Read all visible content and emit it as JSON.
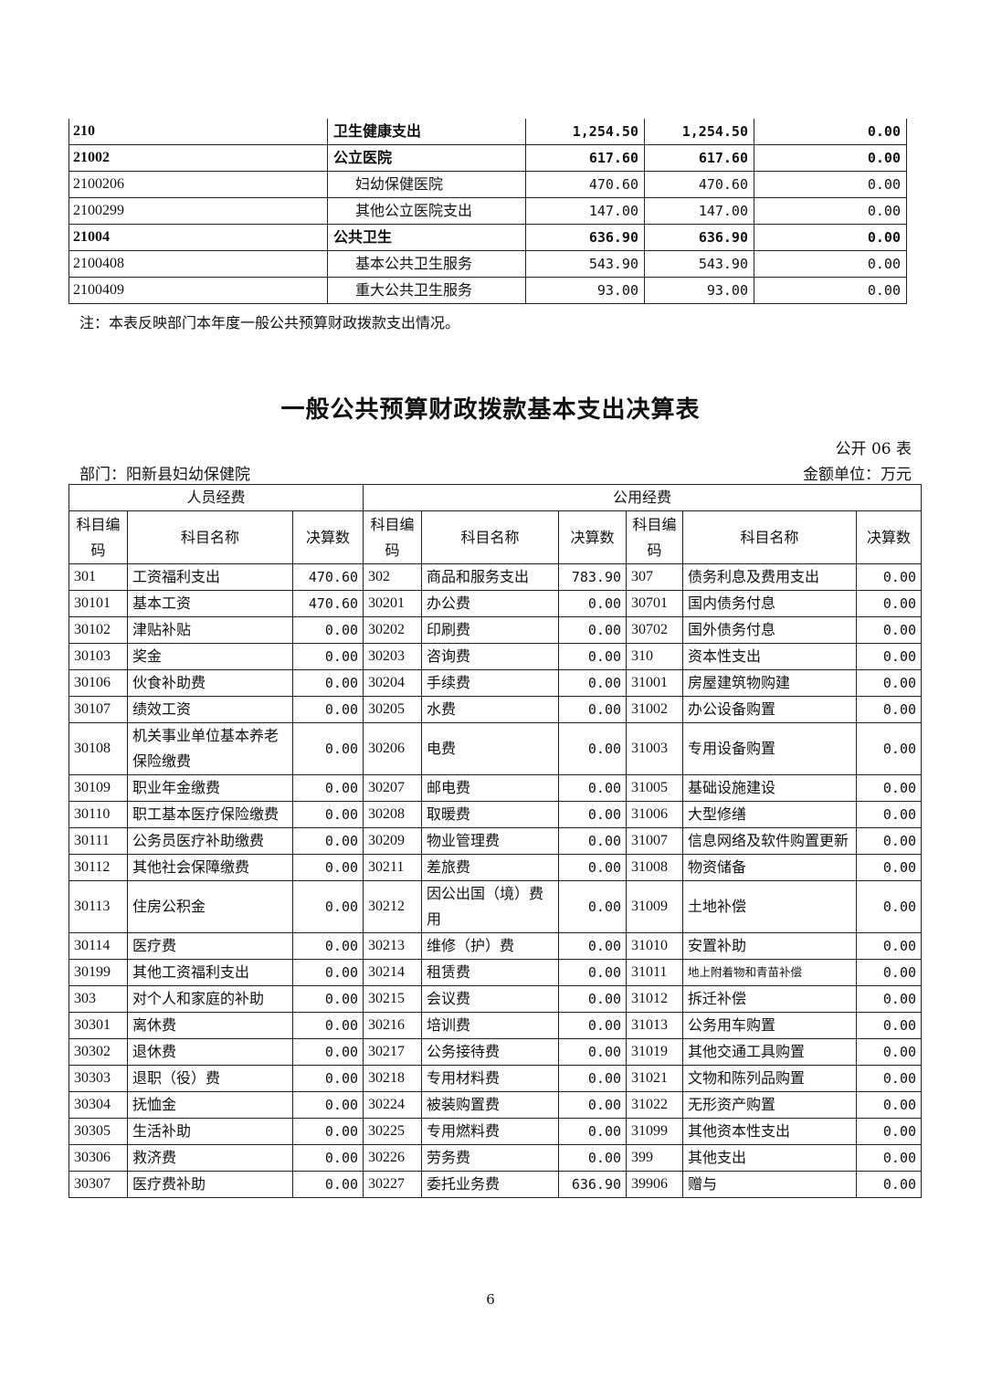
{
  "table1": {
    "rows": [
      {
        "code": "210",
        "name": "卫生健康支出",
        "c1": "1,254.50",
        "c2": "1,254.50",
        "c3": "0.00",
        "bold": true
      },
      {
        "code": "21002",
        "name": "公立医院",
        "c1": "617.60",
        "c2": "617.60",
        "c3": "0.00",
        "bold": true
      },
      {
        "code": "2100206",
        "name": "妇幼保健医院",
        "c1": "470.60",
        "c2": "470.60",
        "c3": "0.00",
        "bold": false
      },
      {
        "code": "2100299",
        "name": "其他公立医院支出",
        "c1": "147.00",
        "c2": "147.00",
        "c3": "0.00",
        "bold": false
      },
      {
        "code": "21004",
        "name": "公共卫生",
        "c1": "636.90",
        "c2": "636.90",
        "c3": "0.00",
        "bold": true
      },
      {
        "code": "2100408",
        "name": "基本公共卫生服务",
        "c1": "543.90",
        "c2": "543.90",
        "c3": "0.00",
        "bold": false
      },
      {
        "code": "2100409",
        "name": "重大公共卫生服务",
        "c1": "93.00",
        "c2": "93.00",
        "c3": "0.00",
        "bold": false
      }
    ],
    "note": "注：本表反映部门本年度一般公共预算财政拨款支出情况。"
  },
  "table2": {
    "title": "一般公共预算财政拨款基本支出决算表",
    "table_no": "公开 06 表",
    "department": "部门：阳新县妇幼保健院",
    "unit": "金额单位：万元",
    "group_personnel": "人员经费",
    "group_public": "公用经费",
    "h_code": "科目编码",
    "h_name": "科目名称",
    "h_amount": "决算数",
    "rows": [
      [
        [
          "301",
          "工资福利支出",
          "470.60"
        ],
        [
          "302",
          "商品和服务支出",
          "783.90"
        ],
        [
          "307",
          "债务利息及费用支出",
          "0.00"
        ]
      ],
      [
        [
          "30101",
          "基本工资",
          "470.60"
        ],
        [
          "30201",
          "办公费",
          "0.00"
        ],
        [
          "30701",
          "国内债务付息",
          "0.00"
        ]
      ],
      [
        [
          "30102",
          "津贴补贴",
          "0.00"
        ],
        [
          "30202",
          "印刷费",
          "0.00"
        ],
        [
          "30702",
          "国外债务付息",
          "0.00"
        ]
      ],
      [
        [
          "30103",
          "奖金",
          "0.00"
        ],
        [
          "30203",
          "咨询费",
          "0.00"
        ],
        [
          "310",
          "资本性支出",
          "0.00"
        ]
      ],
      [
        [
          "30106",
          "伙食补助费",
          "0.00"
        ],
        [
          "30204",
          "手续费",
          "0.00"
        ],
        [
          "31001",
          "房屋建筑物购建",
          "0.00"
        ]
      ],
      [
        [
          "30107",
          "绩效工资",
          "0.00"
        ],
        [
          "30205",
          "水费",
          "0.00"
        ],
        [
          "31002",
          "办公设备购置",
          "0.00"
        ]
      ],
      [
        [
          "30108",
          "机关事业单位基本养老保险缴费",
          "0.00"
        ],
        [
          "30206",
          "电费",
          "0.00"
        ],
        [
          "31003",
          "专用设备购置",
          "0.00"
        ]
      ],
      [
        [
          "30109",
          "职业年金缴费",
          "0.00"
        ],
        [
          "30207",
          "邮电费",
          "0.00"
        ],
        [
          "31005",
          "基础设施建设",
          "0.00"
        ]
      ],
      [
        [
          "30110",
          "职工基本医疗保险缴费",
          "0.00"
        ],
        [
          "30208",
          "取暖费",
          "0.00"
        ],
        [
          "31006",
          "大型修缮",
          "0.00"
        ]
      ],
      [
        [
          "30111",
          "公务员医疗补助缴费",
          "0.00"
        ],
        [
          "30209",
          "物业管理费",
          "0.00"
        ],
        [
          "31007",
          "信息网络及软件购置更新",
          "0.00"
        ]
      ],
      [
        [
          "30112",
          "其他社会保障缴费",
          "0.00"
        ],
        [
          "30211",
          "差旅费",
          "0.00"
        ],
        [
          "31008",
          "物资储备",
          "0.00"
        ]
      ],
      [
        [
          "30113",
          "住房公积金",
          "0.00"
        ],
        [
          "30212",
          "因公出国（境）费用",
          "0.00"
        ],
        [
          "31009",
          "土地补偿",
          "0.00"
        ]
      ],
      [
        [
          "30114",
          "医疗费",
          "0.00"
        ],
        [
          "30213",
          "维修（护）费",
          "0.00"
        ],
        [
          "31010",
          "安置补助",
          "0.00"
        ]
      ],
      [
        [
          "30199",
          "其他工资福利支出",
          "0.00"
        ],
        [
          "30214",
          "租赁费",
          "0.00"
        ],
        [
          "31011",
          "地上附着物和青苗补偿",
          "0.00"
        ]
      ],
      [
        [
          "303",
          "对个人和家庭的补助",
          "0.00"
        ],
        [
          "30215",
          "会议费",
          "0.00"
        ],
        [
          "31012",
          "拆迁补偿",
          "0.00"
        ]
      ],
      [
        [
          "30301",
          "离休费",
          "0.00"
        ],
        [
          "30216",
          "培训费",
          "0.00"
        ],
        [
          "31013",
          "公务用车购置",
          "0.00"
        ]
      ],
      [
        [
          "30302",
          "退休费",
          "0.00"
        ],
        [
          "30217",
          "公务接待费",
          "0.00"
        ],
        [
          "31019",
          "其他交通工具购置",
          "0.00"
        ]
      ],
      [
        [
          "30303",
          "退职（役）费",
          "0.00"
        ],
        [
          "30218",
          "专用材料费",
          "0.00"
        ],
        [
          "31021",
          "文物和陈列品购置",
          "0.00"
        ]
      ],
      [
        [
          "30304",
          "抚恤金",
          "0.00"
        ],
        [
          "30224",
          "被装购置费",
          "0.00"
        ],
        [
          "31022",
          "无形资产购置",
          "0.00"
        ]
      ],
      [
        [
          "30305",
          "生活补助",
          "0.00"
        ],
        [
          "30225",
          "专用燃料费",
          "0.00"
        ],
        [
          "31099",
          "其他资本性支出",
          "0.00"
        ]
      ],
      [
        [
          "30306",
          "救济费",
          "0.00"
        ],
        [
          "30226",
          "劳务费",
          "0.00"
        ],
        [
          "399",
          "其他支出",
          "0.00"
        ]
      ],
      [
        [
          "30307",
          "医疗费补助",
          "0.00"
        ],
        [
          "30227",
          "委托业务费",
          "636.90"
        ],
        [
          "39906",
          "赠与",
          "0.00"
        ]
      ]
    ]
  },
  "page_number": "6"
}
